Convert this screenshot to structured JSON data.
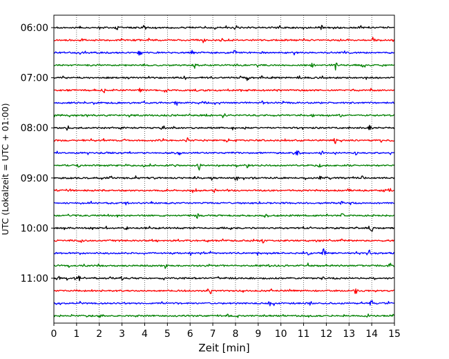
{
  "chart_data": {
    "type": "line",
    "xlabel": "Zeit  [min]",
    "ylabel": "UTC (Lokalzeit = UTC + 01:00)",
    "xlim": [
      0,
      15
    ],
    "x_ticks": [
      0,
      1,
      2,
      3,
      4,
      5,
      6,
      7,
      8,
      9,
      10,
      11,
      12,
      13,
      14,
      15
    ],
    "x_tick_labels": [
      "0",
      "1",
      "2",
      "3",
      "4",
      "5",
      "6",
      "7",
      "8",
      "9",
      "10",
      "11",
      "12",
      "13",
      "14",
      "15"
    ],
    "y_tick_labels": [
      "06:00",
      "07:00",
      "08:00",
      "09:00",
      "10:00",
      "11:00"
    ],
    "row_interval_minutes": 15,
    "start_time": "06:00",
    "grid_x": true,
    "grid_style": "dotted",
    "colors": [
      "#000000",
      "#ff0000",
      "#0000ff",
      "#008000"
    ],
    "series": [
      {
        "start": "06:00",
        "color": "#000000",
        "events": [
          [
            2.8,
            0.4
          ],
          [
            3.95,
            0.35
          ],
          [
            9.9,
            0.4
          ],
          [
            11.8,
            0.45
          ],
          [
            13.5,
            0.4
          ]
        ]
      },
      {
        "start": "06:15",
        "color": "#ff0000",
        "events": [
          [
            6.6,
            0.5
          ],
          [
            7.4,
            0.3
          ],
          [
            8.5,
            0.3
          ],
          [
            14.1,
            0.35
          ]
        ]
      },
      {
        "start": "06:30",
        "color": "#0000ff",
        "events": [
          [
            1.35,
            0.3
          ],
          [
            3.8,
            0.85
          ],
          [
            6.1,
            0.35
          ],
          [
            8.0,
            0.35
          ]
        ]
      },
      {
        "start": "06:45",
        "color": "#008000",
        "events": [
          [
            6.2,
            0.7
          ],
          [
            11.4,
            0.35
          ],
          [
            12.4,
            0.8
          ],
          [
            13.6,
            0.3
          ]
        ]
      },
      {
        "start": "07:00",
        "color": "#000000",
        "events": [
          [
            7.0,
            0.4
          ],
          [
            8.5,
            0.6
          ],
          [
            10.8,
            0.3
          ]
        ]
      },
      {
        "start": "07:15",
        "color": "#ff0000",
        "events": [
          [
            2.2,
            0.45
          ],
          [
            3.8,
            0.3
          ],
          [
            6.3,
            0.35
          ]
        ]
      },
      {
        "start": "07:30",
        "color": "#0000ff",
        "events": [
          [
            5.4,
            0.5
          ],
          [
            6.6,
            0.35
          ],
          [
            9.2,
            0.4
          ]
        ]
      },
      {
        "start": "07:45",
        "color": "#008000",
        "events": [
          [
            1.4,
            0.45
          ],
          [
            7.5,
            0.35
          ],
          [
            11.4,
            0.35
          ],
          [
            12.6,
            0.3
          ]
        ]
      },
      {
        "start": "08:00",
        "color": "#000000",
        "events": [
          [
            0.6,
            0.45
          ],
          [
            4.8,
            0.55
          ],
          [
            13.9,
            0.45
          ]
        ]
      },
      {
        "start": "08:15",
        "color": "#ff0000",
        "events": [
          [
            12.4,
            0.6
          ],
          [
            14.4,
            0.3
          ],
          [
            5.9,
            0.3
          ]
        ]
      },
      {
        "start": "08:30",
        "color": "#0000ff",
        "events": [
          [
            5.5,
            0.45
          ],
          [
            10.7,
            0.6
          ],
          [
            13.3,
            0.65
          ],
          [
            11.8,
            0.3
          ]
        ]
      },
      {
        "start": "08:45",
        "color": "#008000",
        "events": [
          [
            6.4,
            1.0
          ],
          [
            8.5,
            0.4
          ],
          [
            11.7,
            0.4
          ],
          [
            1.1,
            0.3
          ]
        ]
      },
      {
        "start": "09:00",
        "color": "#000000",
        "events": [
          [
            2.5,
            0.3
          ],
          [
            8.0,
            0.35
          ],
          [
            13.6,
            0.35
          ],
          [
            11.7,
            0.3
          ]
        ]
      },
      {
        "start": "09:15",
        "color": "#ff0000",
        "events": [
          [
            7.1,
            0.35
          ],
          [
            13.0,
            0.35
          ],
          [
            14.6,
            0.4
          ]
        ]
      },
      {
        "start": "09:30",
        "color": "#0000ff",
        "events": [
          [
            3.2,
            0.45
          ],
          [
            4.3,
            0.35
          ],
          [
            12.7,
            0.3
          ]
        ]
      },
      {
        "start": "09:45",
        "color": "#008000",
        "events": [
          [
            6.3,
            0.4
          ],
          [
            9.3,
            0.45
          ],
          [
            12.7,
            0.3
          ]
        ]
      },
      {
        "start": "10:00",
        "color": "#000000",
        "events": [
          [
            1.7,
            0.4
          ],
          [
            7.5,
            0.45
          ],
          [
            14.0,
            0.55
          ],
          [
            3.2,
            0.3
          ]
        ]
      },
      {
        "start": "10:15",
        "color": "#ff0000",
        "events": [
          [
            1.2,
            0.3
          ],
          [
            9.2,
            0.3
          ],
          [
            12.7,
            0.3
          ]
        ]
      },
      {
        "start": "10:30",
        "color": "#0000ff",
        "events": [
          [
            11.2,
            0.7
          ],
          [
            11.9,
            0.95
          ],
          [
            13.9,
            0.6
          ],
          [
            9.0,
            0.3
          ]
        ]
      },
      {
        "start": "10:45",
        "color": "#008000",
        "events": [
          [
            4.9,
            0.4
          ],
          [
            11.2,
            0.3
          ],
          [
            14.8,
            0.45
          ]
        ]
      },
      {
        "start": "11:00",
        "color": "#000000",
        "events": [
          [
            0.2,
            0.55
          ],
          [
            1.1,
            0.5
          ],
          [
            5.7,
            0.35
          ],
          [
            3.0,
            0.3
          ]
        ]
      },
      {
        "start": "11:15",
        "color": "#ff0000",
        "events": [
          [
            6.9,
            0.5
          ],
          [
            13.3,
            0.6
          ],
          [
            9.6,
            0.3
          ]
        ]
      },
      {
        "start": "11:30",
        "color": "#0000ff",
        "events": [
          [
            9.5,
            0.4
          ],
          [
            11.3,
            0.35
          ],
          [
            14.0,
            0.8
          ]
        ]
      },
      {
        "start": "11:45",
        "color": "#008000",
        "events": [
          [
            2.0,
            0.3
          ],
          [
            7.7,
            0.3
          ],
          [
            13.8,
            0.35
          ]
        ]
      }
    ]
  }
}
